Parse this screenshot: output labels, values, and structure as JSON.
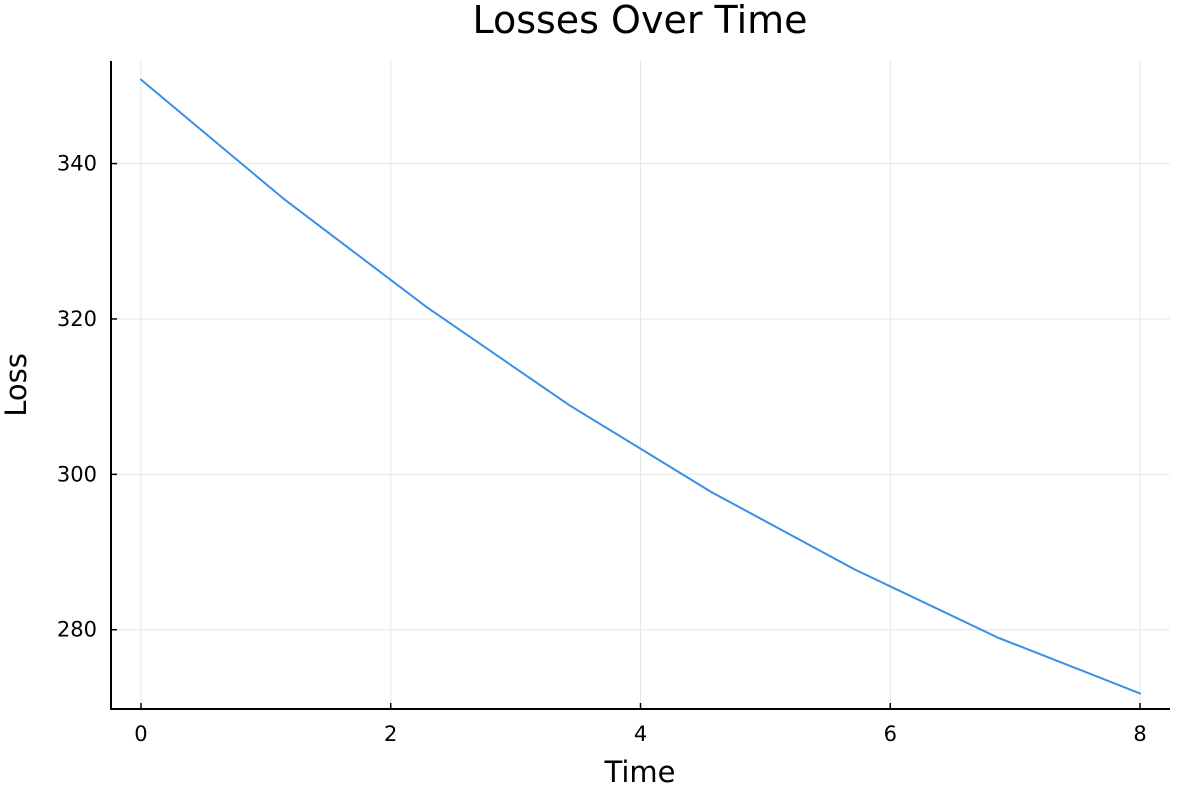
{
  "chart_data": {
    "type": "line",
    "title": "Losses Over Time",
    "xlabel": "Time",
    "ylabel": "Loss",
    "xlim": [
      -0.24,
      8.24
    ],
    "ylim": [
      269.8,
      353.2
    ],
    "x_ticks": [
      0,
      2,
      4,
      6,
      8
    ],
    "y_ticks": [
      280,
      300,
      320,
      340
    ],
    "grid": true,
    "legend": "none",
    "series_color": "#3b8ee8",
    "series": [
      {
        "x": [
          0,
          1.14,
          2.29,
          3.43,
          4.57,
          5.71,
          6.86,
          8.0
        ],
        "y": [
          350.8,
          335.5,
          321.5,
          308.9,
          297.7,
          287.8,
          279.0,
          271.8
        ]
      }
    ]
  }
}
